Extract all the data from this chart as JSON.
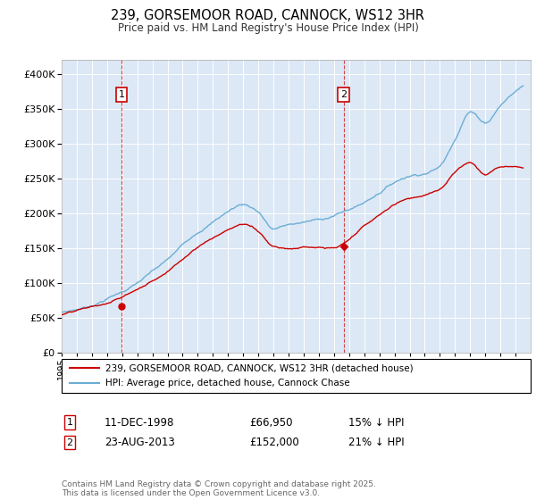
{
  "title": "239, GORSEMOOR ROAD, CANNOCK, WS12 3HR",
  "subtitle": "Price paid vs. HM Land Registry's House Price Index (HPI)",
  "hpi_color": "#6baed6",
  "price_color": "#cc0000",
  "annotation_color": "#cc0000",
  "background_color": "#dce8f5",
  "legend_label_price": "239, GORSEMOOR ROAD, CANNOCK, WS12 3HR (detached house)",
  "legend_label_hpi": "HPI: Average price, detached house, Cannock Chase",
  "purchase1_date": "11-DEC-1998",
  "purchase1_price": 66950,
  "purchase1_year": 1998.96,
  "purchase2_date": "23-AUG-2013",
  "purchase2_price": 152000,
  "purchase2_year": 2013.64,
  "purchase1_hpi_pct": "15% ↓ HPI",
  "purchase2_hpi_pct": "21% ↓ HPI",
  "footer": "Contains HM Land Registry data © Crown copyright and database right 2025.\nThis data is licensed under the Open Government Licence v3.0.",
  "ylim": [
    0,
    420000
  ],
  "yticks": [
    0,
    50000,
    100000,
    150000,
    200000,
    250000,
    300000,
    350000,
    400000
  ],
  "year_start": 1995,
  "year_end": 2025
}
